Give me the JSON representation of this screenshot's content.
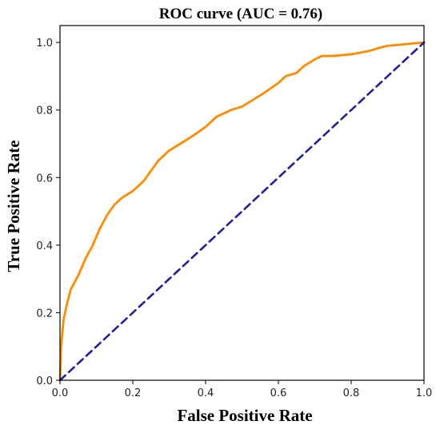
{
  "chart_data": {
    "type": "line",
    "title": "ROC curve (AUC = 0.76)",
    "xlabel": "False Positive Rate",
    "ylabel": "True Positive Rate",
    "xlim": [
      0.0,
      1.0
    ],
    "ylim": [
      0.0,
      1.05
    ],
    "grid": false,
    "xticks": [
      "0.0",
      "0.2",
      "0.4",
      "0.6",
      "0.8",
      "1.0"
    ],
    "yticks": [
      "0.0",
      "0.2",
      "0.4",
      "0.6",
      "0.8",
      "1.0"
    ],
    "series": [
      {
        "color": "#ff8c00",
        "style": "solid",
        "x": [
          0.0,
          0.003,
          0.01,
          0.02,
          0.03,
          0.05,
          0.07,
          0.09,
          0.11,
          0.13,
          0.15,
          0.17,
          0.2,
          0.23,
          0.25,
          0.27,
          0.3,
          0.33,
          0.36,
          0.4,
          0.43,
          0.47,
          0.5,
          0.53,
          0.56,
          0.6,
          0.62,
          0.65,
          0.67,
          0.7,
          0.72,
          0.75,
          0.8,
          0.85,
          0.88,
          0.9,
          0.93,
          0.95,
          0.97,
          1.0
        ],
        "y": [
          0.0,
          0.1,
          0.18,
          0.23,
          0.27,
          0.31,
          0.36,
          0.4,
          0.45,
          0.49,
          0.52,
          0.54,
          0.56,
          0.59,
          0.62,
          0.65,
          0.68,
          0.7,
          0.72,
          0.75,
          0.78,
          0.8,
          0.81,
          0.83,
          0.85,
          0.88,
          0.9,
          0.91,
          0.93,
          0.95,
          0.96,
          0.96,
          0.965,
          0.975,
          0.985,
          0.99,
          0.993,
          0.995,
          0.997,
          1.0
        ]
      },
      {
        "color": "#1f1fa0",
        "style": "dashed",
        "x": [
          0.0,
          1.0
        ],
        "y": [
          0.0,
          1.0
        ]
      }
    ]
  }
}
